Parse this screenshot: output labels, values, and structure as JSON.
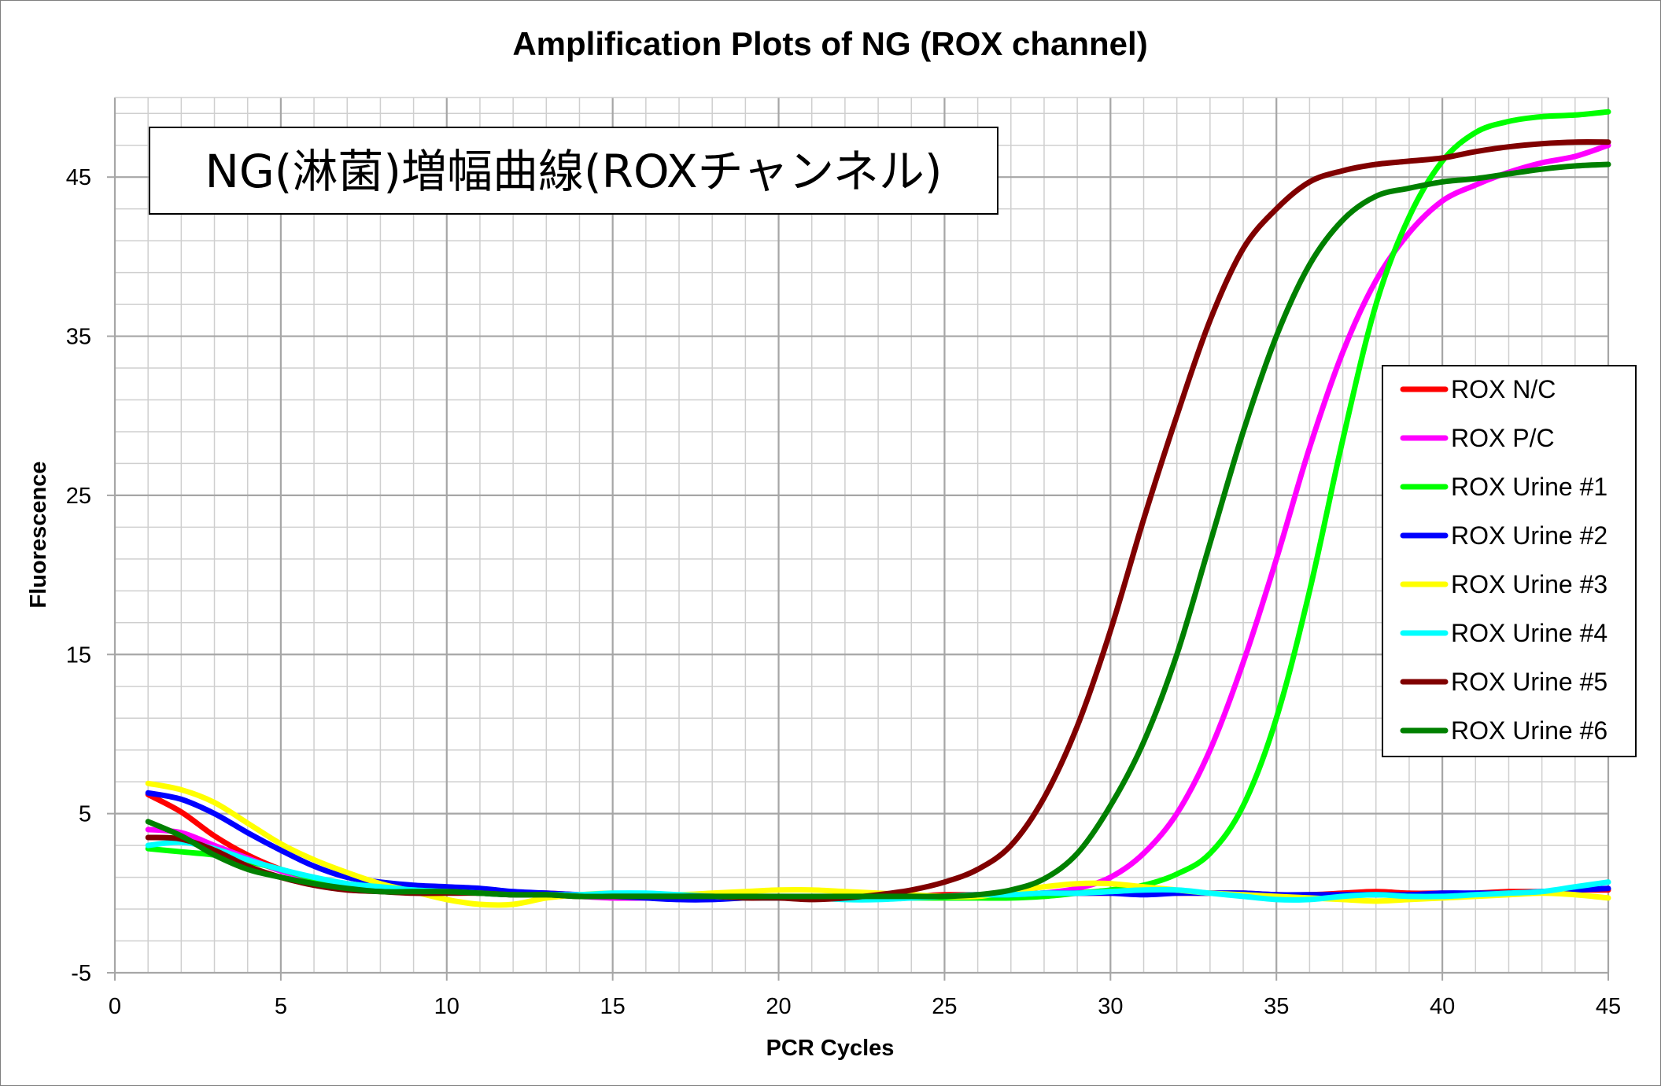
{
  "chart_data": {
    "type": "line",
    "title": "Amplification Plots of NG (ROX channel)",
    "annotation": "NG(淋菌)増幅曲線(ROXチャンネル)",
    "xlabel": "PCR Cycles",
    "ylabel": "Fluorescence",
    "xlim": [
      0,
      45
    ],
    "ylim": [
      -5,
      50
    ],
    "xticks": [
      0,
      5,
      10,
      15,
      20,
      25,
      30,
      35,
      40,
      45
    ],
    "yticks": [
      -5,
      5,
      15,
      25,
      35,
      45
    ],
    "grid": true,
    "legend_position": "right",
    "x": [
      1,
      2,
      3,
      4,
      5,
      6,
      7,
      8,
      9,
      10,
      11,
      12,
      13,
      14,
      15,
      16,
      17,
      18,
      19,
      20,
      21,
      22,
      23,
      24,
      25,
      26,
      27,
      28,
      29,
      30,
      31,
      32,
      33,
      34,
      35,
      36,
      37,
      38,
      39,
      40,
      41,
      42,
      43,
      44,
      45
    ],
    "series": [
      {
        "name": "ROX N/C",
        "color": "#ff0000",
        "values": [
          6.2,
          5.1,
          3.6,
          2.4,
          1.5,
          0.9,
          0.6,
          0.4,
          0.3,
          0.2,
          0.1,
          0.0,
          0.0,
          -0.1,
          -0.1,
          -0.2,
          -0.2,
          -0.3,
          -0.3,
          -0.3,
          -0.3,
          -0.2,
          -0.2,
          -0.2,
          -0.1,
          -0.1,
          -0.1,
          0.0,
          0.0,
          0.0,
          0.0,
          0.0,
          0.0,
          0.0,
          -0.1,
          -0.1,
          0.0,
          0.1,
          0.0,
          0.0,
          0.0,
          0.1,
          0.1,
          0.2,
          0.2
        ]
      },
      {
        "name": "ROX P/C",
        "color": "#ff00ff",
        "values": [
          4.0,
          3.8,
          3.0,
          2.2,
          1.4,
          0.9,
          0.5,
          0.3,
          0.2,
          0.1,
          0.0,
          -0.1,
          -0.1,
          -0.2,
          -0.3,
          -0.3,
          -0.3,
          -0.3,
          -0.3,
          -0.3,
          -0.3,
          -0.3,
          -0.3,
          -0.3,
          -0.2,
          -0.2,
          -0.2,
          0.0,
          0.3,
          1.0,
          2.5,
          5.0,
          9.0,
          14.5,
          21.0,
          28.0,
          34.0,
          38.5,
          41.5,
          43.5,
          44.5,
          45.3,
          45.9,
          46.3,
          47.0
        ]
      },
      {
        "name": "ROX Urine #1",
        "color": "#00ff00",
        "values": [
          2.8,
          2.6,
          2.4,
          2.0,
          1.5,
          0.9,
          0.5,
          0.3,
          0.2,
          0.1,
          0.0,
          -0.1,
          -0.1,
          -0.2,
          -0.2,
          -0.2,
          -0.3,
          -0.3,
          -0.3,
          -0.3,
          -0.3,
          -0.3,
          -0.3,
          -0.3,
          -0.3,
          -0.3,
          -0.3,
          -0.2,
          0.0,
          0.2,
          0.5,
          1.2,
          2.5,
          5.5,
          11.0,
          19.0,
          28.5,
          37.0,
          42.5,
          46.0,
          47.8,
          48.5,
          48.8,
          48.9,
          49.1
        ]
      },
      {
        "name": "ROX Urine #2",
        "color": "#0000ff",
        "values": [
          6.3,
          5.9,
          5.0,
          3.8,
          2.7,
          1.7,
          1.0,
          0.7,
          0.5,
          0.4,
          0.3,
          0.1,
          0.0,
          -0.1,
          -0.2,
          -0.3,
          -0.4,
          -0.4,
          -0.3,
          -0.3,
          -0.3,
          -0.3,
          -0.3,
          -0.2,
          -0.2,
          -0.1,
          -0.1,
          0.0,
          0.0,
          0.0,
          -0.1,
          0.0,
          0.0,
          0.0,
          -0.1,
          -0.1,
          -0.1,
          -0.1,
          -0.1,
          0.0,
          0.0,
          0.0,
          0.1,
          0.2,
          0.3
        ]
      },
      {
        "name": "ROX Urine #3",
        "color": "#ffff00",
        "values": [
          6.9,
          6.5,
          5.7,
          4.4,
          3.1,
          2.1,
          1.3,
          0.6,
          0.1,
          -0.4,
          -0.7,
          -0.7,
          -0.3,
          -0.1,
          0.0,
          -0.1,
          -0.1,
          0.0,
          0.1,
          0.2,
          0.2,
          0.1,
          0.0,
          -0.1,
          -0.2,
          -0.2,
          0.1,
          0.4,
          0.6,
          0.6,
          0.4,
          0.2,
          0.0,
          -0.1,
          -0.2,
          -0.3,
          -0.4,
          -0.5,
          -0.4,
          -0.3,
          -0.2,
          -0.1,
          0.0,
          -0.1,
          -0.3
        ]
      },
      {
        "name": "ROX Urine #4",
        "color": "#00ffff",
        "values": [
          3.0,
          3.2,
          2.8,
          2.1,
          1.5,
          1.0,
          0.6,
          0.4,
          0.2,
          0.1,
          0.0,
          -0.1,
          -0.1,
          -0.1,
          0.0,
          0.0,
          -0.1,
          -0.2,
          -0.3,
          -0.3,
          -0.3,
          -0.4,
          -0.4,
          -0.3,
          -0.2,
          -0.1,
          -0.1,
          0.0,
          0.0,
          0.1,
          0.2,
          0.2,
          0.0,
          -0.2,
          -0.4,
          -0.4,
          -0.2,
          -0.1,
          -0.2,
          -0.2,
          -0.1,
          0.0,
          0.1,
          0.4,
          0.7
        ]
      },
      {
        "name": "ROX Urine #5",
        "color": "#800000",
        "values": [
          3.5,
          3.4,
          2.7,
          1.7,
          1.0,
          0.5,
          0.2,
          0.1,
          0.0,
          0.0,
          0.0,
          -0.1,
          -0.1,
          -0.2,
          -0.2,
          -0.2,
          -0.2,
          -0.2,
          -0.3,
          -0.3,
          -0.4,
          -0.3,
          -0.1,
          0.2,
          0.7,
          1.5,
          3.0,
          6.0,
          10.5,
          16.5,
          23.5,
          30.0,
          36.0,
          40.5,
          43.0,
          44.7,
          45.4,
          45.8,
          46.0,
          46.2,
          46.6,
          46.9,
          47.1,
          47.2,
          47.2
        ]
      },
      {
        "name": "ROX Urine #6",
        "color": "#008000",
        "values": [
          4.5,
          3.6,
          2.4,
          1.5,
          1.0,
          0.6,
          0.3,
          0.1,
          0.1,
          0.1,
          0.0,
          -0.1,
          -0.1,
          -0.2,
          -0.2,
          -0.2,
          -0.2,
          -0.2,
          -0.2,
          -0.2,
          -0.2,
          -0.2,
          -0.2,
          -0.2,
          -0.2,
          -0.1,
          0.2,
          0.9,
          2.5,
          5.5,
          9.5,
          15.0,
          22.0,
          29.0,
          35.0,
          39.5,
          42.3,
          43.8,
          44.3,
          44.7,
          44.9,
          45.2,
          45.5,
          45.7,
          45.8
        ]
      }
    ]
  }
}
